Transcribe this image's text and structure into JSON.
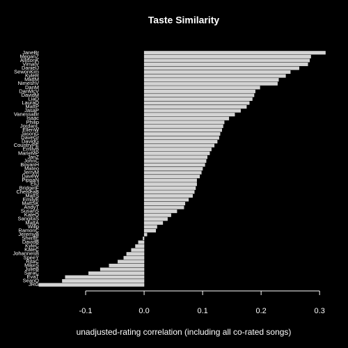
{
  "chart_data": {
    "type": "barh",
    "title": "Taste Similarity",
    "x_label": "unadjusted-rating correlation (including all co-rated songs)",
    "categories": [
      "JaneBr",
      "MeganZ",
      "AllisonK",
      "VimalV",
      "DanielJ",
      "SewonKim",
      "KyleR",
      "MattM",
      "NimeshV",
      "DanM",
      "DanMcV",
      "DavidM",
      "LiaD",
      "LauraD",
      "MattP",
      "JasaP",
      "VanessaBr",
      "Isaac",
      "Philip",
      "JordanL",
      "EllenW",
      "JasonG",
      "DaveGr",
      "DavidG",
      "CountryPE",
      "EmilyB",
      "MarieMP",
      "JanZ",
      "JohnC",
      "BoyanH",
      "Mateo",
      "JerryM",
      "DaveW",
      "PippaN",
      "EliJ",
      "BridgetF",
      "ChelseaB",
      "MattS",
      "EmilyE",
      "MattSK",
      "AndyT",
      "SusanS",
      "KateO",
      "SangitaS",
      "MattA",
      "Willp",
      "RamonC",
      "JeremyB",
      "SherifE",
      "DavidB",
      "KyleC",
      "KateC",
      "JohannesB",
      "SpeeY",
      "RitaC",
      "MikeS",
      "JulieB",
      "SaraC",
      "EvaT",
      "SeanO",
      "JRG"
    ],
    "values": [
      0.31,
      0.285,
      0.283,
      0.28,
      0.265,
      0.25,
      0.242,
      0.23,
      0.228,
      0.198,
      0.19,
      0.188,
      0.185,
      0.18,
      0.175,
      0.165,
      0.155,
      0.145,
      0.137,
      0.135,
      0.133,
      0.13,
      0.128,
      0.125,
      0.12,
      0.115,
      0.112,
      0.108,
      0.106,
      0.104,
      0.1,
      0.098,
      0.095,
      0.09,
      0.09,
      0.088,
      0.086,
      0.083,
      0.076,
      0.07,
      0.068,
      0.056,
      0.046,
      0.04,
      0.032,
      0.022,
      0.02,
      0.005,
      -0.002,
      -0.01,
      -0.015,
      -0.022,
      -0.03,
      -0.035,
      -0.045,
      -0.06,
      -0.075,
      -0.095,
      -0.135,
      -0.14,
      -0.18
    ],
    "color": "#d3d3d3",
    "xlim": [
      -0.2,
      0.32
    ],
    "xticks": [
      -0.1,
      {
        "value": 0,
        "label": "0.0"
      },
      0.1,
      0.2,
      0.3
    ]
  }
}
